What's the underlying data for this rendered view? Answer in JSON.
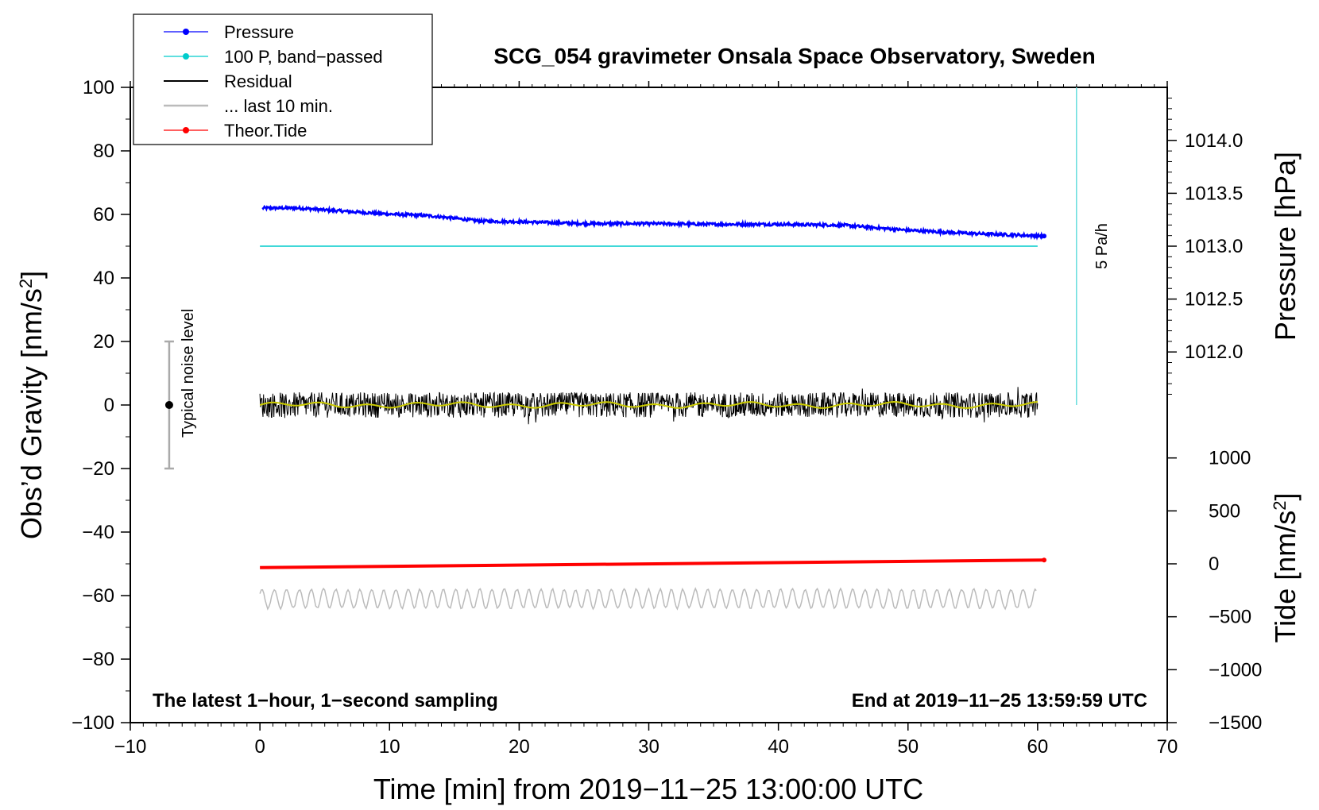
{
  "chart_data": {
    "type": "line",
    "title": "SCG_054 gravimeter Onsala Space Observatory, Sweden",
    "xlabel": "Time [min] from 2019−11−25 13:00:00 UTC",
    "ylabel_left": "Obs’d Gravity [nm/s",
    "ylabel_left_sup": "2",
    "ylabel_left_tail": "]",
    "ylabel_right_pressure": "Pressure [hPa]",
    "ylabel_right_tide": "Tide [nm/s",
    "ylabel_right_tide_sup": "2",
    "ylabel_right_tide_tail": "]",
    "xlim": [
      -10,
      70
    ],
    "ylim": [
      -100,
      100
    ],
    "x_ticks": [
      -10,
      0,
      10,
      20,
      30,
      40,
      50,
      60,
      70
    ],
    "x_tick_labels": [
      "−10",
      "0",
      "10",
      "20",
      "30",
      "40",
      "50",
      "60",
      "70"
    ],
    "y_ticks": [
      -100,
      -80,
      -60,
      -40,
      -20,
      0,
      20,
      40,
      60,
      80,
      100
    ],
    "y_tick_labels": [
      "−100",
      "−80",
      "−60",
      "−40",
      "−20",
      "0",
      "20",
      "40",
      "60",
      "80",
      "100"
    ],
    "pressure_axis": {
      "ticks": [
        1012.0,
        1012.5,
        1013.0,
        1013.5,
        1014.0
      ],
      "tick_labels": [
        "1012.0",
        "1012.5",
        "1013.0",
        "1013.5",
        "1014.0"
      ],
      "gravity_at_1013": 50,
      "gravity_per_hpa": 33.3
    },
    "tide_axis": {
      "ticks": [
        -1500,
        -1000,
        -500,
        0,
        500,
        1000
      ],
      "tick_labels": [
        "−1500",
        "−1000",
        "−500",
        "0",
        "500",
        "1000"
      ],
      "gravity_at_zero": -50,
      "gravity_per_unit": 0.03333
    },
    "series": [
      {
        "name": "Pressure",
        "color": "#0000ff",
        "style": "line-dots",
        "x": [
          0,
          3,
          5,
          8,
          10,
          13,
          15,
          17,
          20,
          25,
          30,
          35,
          40,
          45,
          50,
          55,
          60.5
        ],
        "y": [
          62,
          62,
          61.4,
          60.6,
          60.1,
          59.6,
          58.8,
          57.9,
          57.7,
          57.1,
          57.1,
          56.9,
          56.9,
          56.6,
          55.0,
          54.0,
          53.2
        ]
      },
      {
        "name": "100 P, band−passed",
        "color": "#00cccc",
        "style": "line-dots",
        "x": [
          0,
          60
        ],
        "y": [
          50,
          50
        ]
      },
      {
        "name": "Residual",
        "color": "#000000",
        "style": "line",
        "x_range": [
          0,
          60
        ],
        "mean": 0,
        "noise_amplitude": 5
      },
      {
        "name": "... last 10 min.",
        "color": "#bbbbbb",
        "style": "line",
        "x_range": [
          0,
          60
        ],
        "mean": -61,
        "noise_amplitude": 5
      },
      {
        "name": "Theor.Tide",
        "color": "#ff0000",
        "style": "line-dots",
        "x": [
          0,
          60.5
        ],
        "y": [
          -51.2,
          -48.8
        ]
      }
    ],
    "smoothed_residual_color": "#cccc00",
    "pressure_rate_line": {
      "x": 63,
      "y": [
        0,
        100
      ],
      "label": "5 Pa/h",
      "color": "#66dddd"
    },
    "noise_bar": {
      "x": -7,
      "center": 0,
      "half_range": 20,
      "label": "Typical noise level"
    },
    "annotations": {
      "bottom_left": "The latest 1−hour, 1−second sampling",
      "bottom_right": "End at 2019−11−25 13:59:59 UTC"
    },
    "legend_position": "top-left"
  }
}
